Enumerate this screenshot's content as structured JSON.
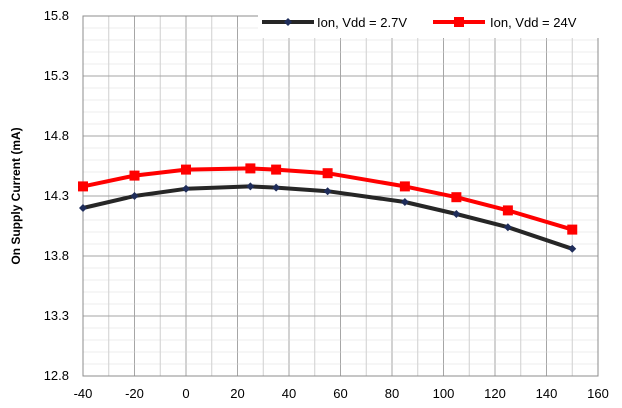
{
  "chart_data": {
    "type": "line",
    "title": "",
    "xlabel": "",
    "ylabel": "On  Supply Current  (mA)",
    "xlim": [
      -40,
      160
    ],
    "ylim": [
      12.8,
      15.8
    ],
    "xticks": [
      -40,
      -20,
      0,
      20,
      40,
      60,
      80,
      100,
      120,
      140,
      160
    ],
    "xtick_labels": [
      "-40",
      "-20",
      "0",
      "20",
      "40",
      "60",
      "80",
      "100",
      "120",
      "140",
      "160"
    ],
    "yticks": [
      12.8,
      13.3,
      13.8,
      14.3,
      14.8,
      15.3,
      15.8
    ],
    "ytick_labels": [
      "12.8",
      "13.3",
      "13.8",
      "14.3",
      "14.8",
      "15.3",
      "15.8"
    ],
    "grid": true,
    "legend_position": "top-right",
    "series": [
      {
        "name": "Ion, Vdd = 2.7V",
        "color": "#262626",
        "marker": "diamond",
        "x": [
          -40,
          -20,
          0,
          25,
          35,
          55,
          85,
          105,
          125,
          150
        ],
        "y": [
          14.2,
          14.3,
          14.36,
          14.38,
          14.37,
          14.34,
          14.25,
          14.15,
          14.04,
          13.86
        ]
      },
      {
        "name": "Ion, Vdd = 24V",
        "color": "#ff0000",
        "marker": "square",
        "x": [
          -40,
          -20,
          0,
          25,
          35,
          55,
          85,
          105,
          125,
          150
        ],
        "y": [
          14.38,
          14.47,
          14.52,
          14.53,
          14.52,
          14.49,
          14.38,
          14.29,
          14.18,
          14.02
        ]
      }
    ]
  }
}
